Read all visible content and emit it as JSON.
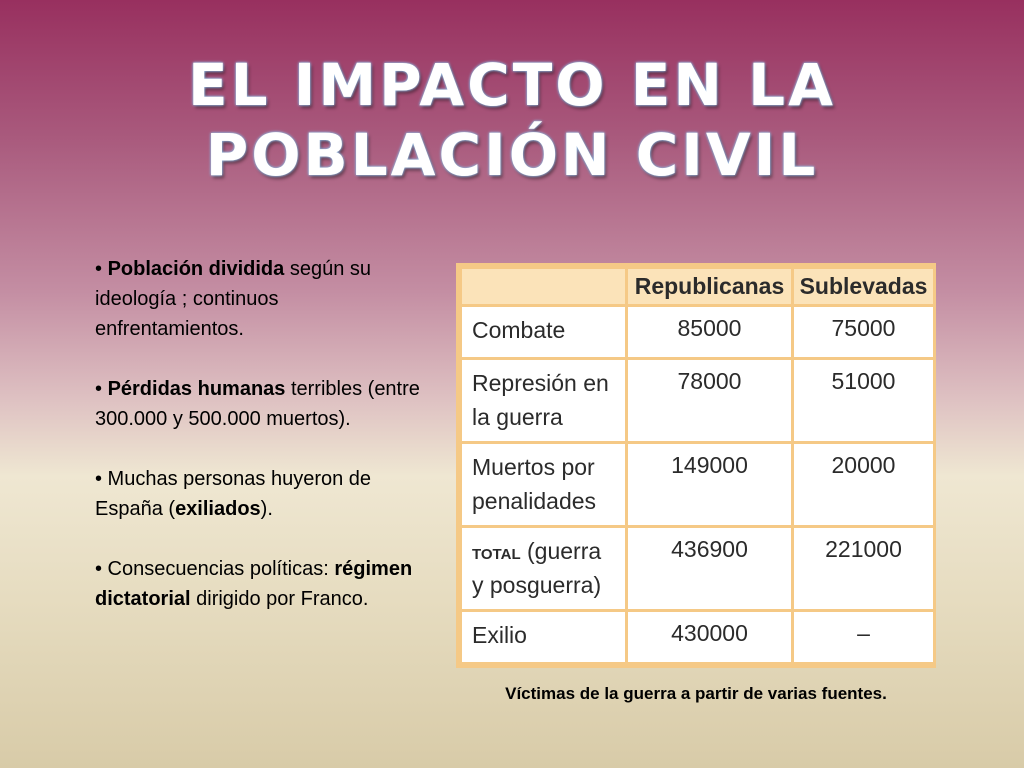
{
  "title": {
    "line1": "EL IMPACTO EN LA",
    "line2": "POBLACIÓN CIVIL"
  },
  "bullets": [
    {
      "pre": "• ",
      "bold": "Población dividida",
      "post": " según su ideología ; continuos enfrentamientos."
    },
    {
      "pre": "• ",
      "bold": "Pérdidas humanas",
      "post": " terribles (entre 300.000 y 500.000 muertos)."
    },
    {
      "pre": "• Muchas personas huyeron de España (",
      "bold": "exiliados",
      "post": ")."
    },
    {
      "pre": "• Consecuencias políticas: ",
      "bold": "régimen dictatorial",
      "post": " dirigido por Franco."
    }
  ],
  "table": {
    "headers": [
      "",
      "Republicanas",
      "Sublevadas"
    ],
    "rows": [
      {
        "label": "Combate",
        "label_prefix": "",
        "republicanas": "85000",
        "sublevadas": "75000"
      },
      {
        "label": "Represión en la guerra",
        "label_prefix": "",
        "republicanas": "78000",
        "sublevadas": "51000"
      },
      {
        "label": "Muertos por penalidades",
        "label_prefix": "",
        "republicanas": "149000",
        "sublevadas": "20000"
      },
      {
        "label": "(guerra y posguerra)",
        "label_prefix": "TOTAL",
        "republicanas": "436900",
        "sublevadas": "221000"
      },
      {
        "label": "Exilio",
        "label_prefix": "",
        "republicanas": "430000",
        "sublevadas": "–"
      }
    ]
  },
  "caption": "Víctimas de la guerra a partir de varias fuentes.",
  "colors": {
    "table_border": "#f5c986",
    "header_bg": "#fbe3b9",
    "title_glow": "#8fb6df"
  }
}
